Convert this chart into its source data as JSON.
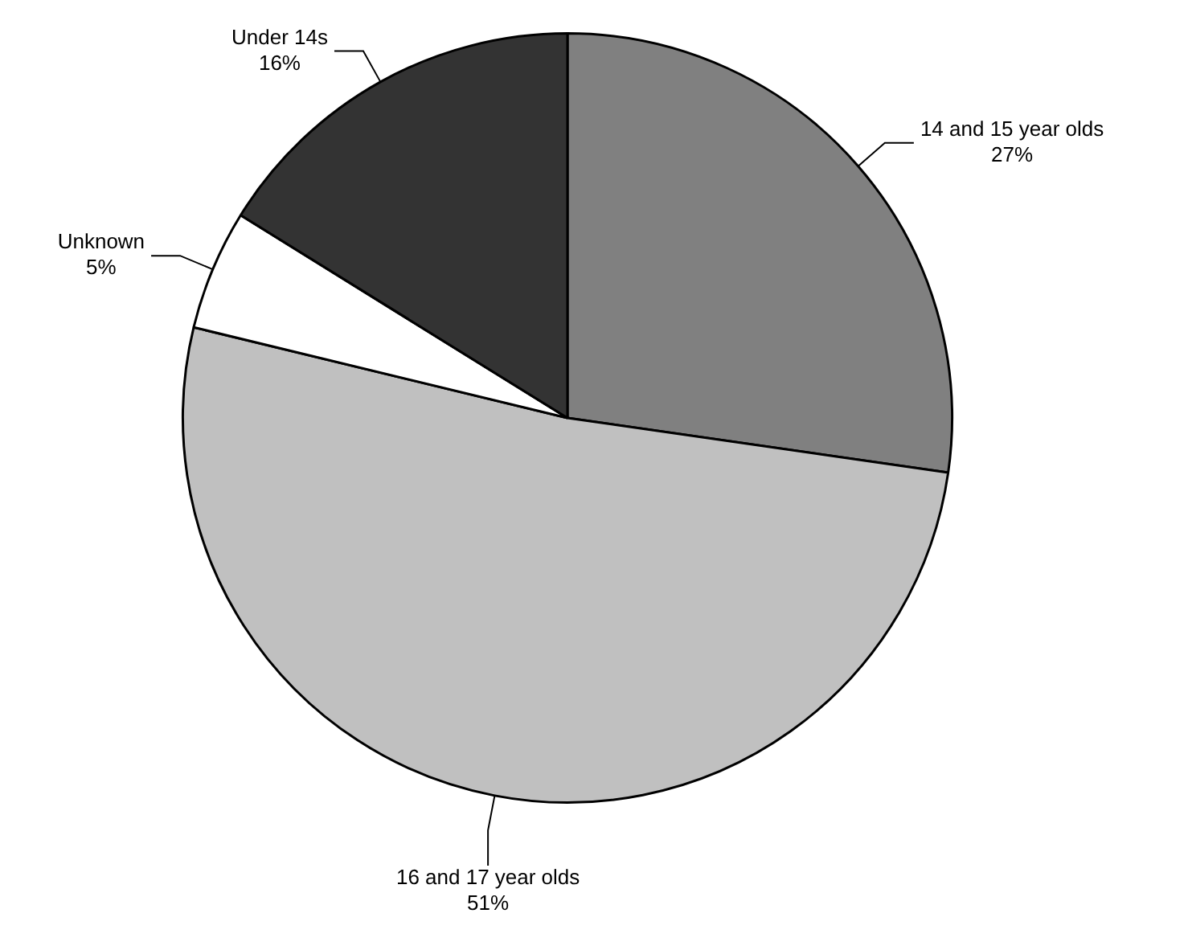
{
  "chart_data": {
    "type": "pie",
    "categories": [
      "14 and 15 year olds",
      "16 and 17 year olds",
      "Unknown",
      "Under 14s"
    ],
    "values": [
      27,
      51,
      5,
      16
    ],
    "colors": [
      "#808080",
      "#c0c0c0",
      "#ffffff",
      "#333333"
    ],
    "value_labels": [
      "27%",
      "51%",
      "5%",
      "16%"
    ],
    "legend": false
  }
}
